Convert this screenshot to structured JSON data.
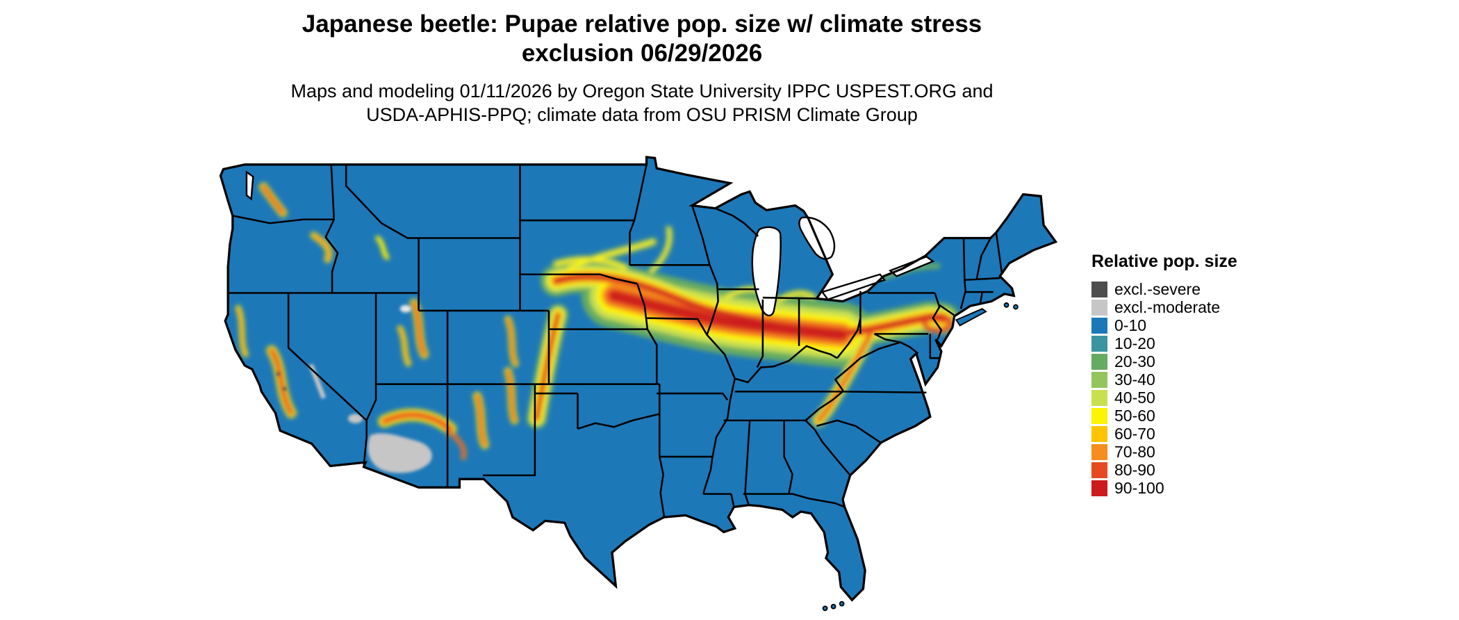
{
  "header": {
    "title_line1": "Japanese beetle: Pupae relative pop. size w/ climate stress",
    "title_line2": "exclusion 06/29/2026",
    "subtitle_line1": "Maps and modeling 01/11/2026 by Oregon State University IPPC USPEST.ORG and",
    "subtitle_line2": "USDA-APHIS-PPQ; climate data from OSU PRISM Climate Group"
  },
  "legend": {
    "title": "Relative pop. size",
    "items": [
      {
        "label": "excl.-severe",
        "color": "#4d4d4d"
      },
      {
        "label": "excl.-moderate",
        "color": "#c6c6c6"
      },
      {
        "label": "0-10",
        "color": "#1d78b8"
      },
      {
        "label": "10-20",
        "color": "#3b95a0"
      },
      {
        "label": "20-30",
        "color": "#66ab62"
      },
      {
        "label": "30-40",
        "color": "#94c45c"
      },
      {
        "label": "40-50",
        "color": "#c9e04e"
      },
      {
        "label": "50-60",
        "color": "#fdf403"
      },
      {
        "label": "60-70",
        "color": "#fdc404"
      },
      {
        "label": "70-80",
        "color": "#f68d1e"
      },
      {
        "label": "80-90",
        "color": "#e54a21"
      },
      {
        "label": "90-100",
        "color": "#cc1a1d"
      }
    ]
  },
  "map": {
    "land_color": "#1d78b8",
    "exclusion_moderate_color": "#c6c6c6",
    "exclusion_severe_color": "#4d4d4d",
    "border_color": "#000000",
    "water_color": "#ffffff"
  }
}
